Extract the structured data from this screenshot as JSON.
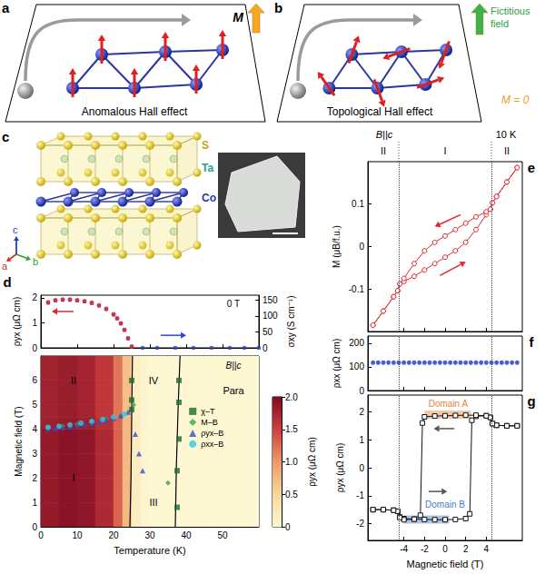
{
  "diagrams": {
    "a": {
      "label": "a",
      "caption": "Anomalous Hall effect",
      "vector_label": "M"
    },
    "b": {
      "label": "b",
      "caption": "Topological Hall effect",
      "vector_label": "Fictitious field",
      "note": "M = 0"
    },
    "c": {
      "label": "c",
      "atoms": [
        {
          "name": "S",
          "color": "#c9a800"
        },
        {
          "name": "Ta",
          "color": "#2a9d8f"
        },
        {
          "name": "Co",
          "color": "#2a3ab0"
        }
      ],
      "axes": [
        {
          "name": "a",
          "color": "#d03020"
        },
        {
          "name": "b",
          "color": "#30a030"
        },
        {
          "name": "c",
          "color": "#2040c0"
        }
      ]
    }
  },
  "chart_data": [
    {
      "panel": "d",
      "type": "scatter",
      "annotation": "0 T",
      "ylabel": "ρyx (μΩ cm)",
      "y2label": "σxy (S cm⁻¹)",
      "xlim": [
        0,
        60
      ],
      "xticks": [
        0,
        10,
        20,
        30,
        40,
        50
      ],
      "ylim": [
        0,
        2.1
      ],
      "yticks": [
        0,
        1,
        2
      ],
      "y2lim": [
        0,
        165
      ],
      "y2ticks": [
        0,
        50,
        100,
        150
      ],
      "tick_labels": "y",
      "series": [
        {
          "color": "#2f49d1",
          "marker": "square",
          "axis": "y2",
          "x": [
            2,
            4,
            6,
            8,
            10,
            12,
            14,
            16,
            18,
            20,
            21,
            22,
            23,
            24,
            25,
            28,
            32,
            37,
            42,
            47,
            52,
            56,
            60
          ],
          "values": [
            141,
            148,
            150,
            150,
            148,
            145,
            140,
            132,
            121,
            104,
            92,
            76,
            56,
            30,
            4,
            0,
            0,
            0,
            0,
            0,
            0,
            0,
            0
          ]
        },
        {
          "color": "#e3262e",
          "marker": "circle",
          "x": [
            2,
            4,
            6,
            8,
            10,
            12,
            14,
            16,
            18,
            20,
            21,
            22,
            23,
            24,
            25
          ],
          "values": [
            1.82,
            1.9,
            1.93,
            1.93,
            1.9,
            1.86,
            1.8,
            1.7,
            1.56,
            1.34,
            1.18,
            0.98,
            0.72,
            0.38,
            0.05
          ]
        }
      ]
    },
    {
      "type": "heatmap",
      "xlabel": "Temperature (K)",
      "ylabel": "Magnetic field (T)",
      "xlim": [
        0,
        60
      ],
      "xticks": [
        0,
        10,
        20,
        30,
        40,
        50
      ],
      "ylim": [
        0,
        7
      ],
      "yticks": [
        0,
        1,
        2,
        3,
        4,
        5,
        6
      ],
      "annotations": [
        "I",
        "II",
        "III",
        "IV",
        "Para",
        "B||c"
      ],
      "x_edges": [
        0,
        5,
        10,
        15,
        20,
        22.5,
        25,
        27.5,
        30,
        35,
        40,
        50,
        60
      ],
      "y_edges": [
        0,
        1,
        2,
        3,
        4,
        4.5,
        5,
        6,
        7
      ],
      "cells": [
        [
          1.85,
          1.92,
          1.88,
          1.7,
          1.3,
          0.75,
          0.15,
          0.03,
          0,
          0,
          0,
          0
        ],
        [
          1.85,
          1.92,
          1.88,
          1.7,
          1.3,
          0.75,
          0.15,
          0.03,
          0,
          0,
          0,
          0
        ],
        [
          1.85,
          1.92,
          1.88,
          1.7,
          1.3,
          0.75,
          0.15,
          0.03,
          0,
          0,
          0,
          0
        ],
        [
          1.85,
          1.92,
          1.88,
          1.7,
          1.3,
          0.75,
          0.15,
          0.03,
          0,
          0,
          0,
          0
        ],
        [
          1.8,
          1.85,
          1.8,
          1.65,
          1.28,
          0.75,
          0.15,
          0.03,
          0,
          0,
          0,
          0
        ],
        [
          1.78,
          1.82,
          1.76,
          1.58,
          1.2,
          0.7,
          0.12,
          0.03,
          0,
          0,
          0,
          0
        ],
        [
          1.78,
          1.82,
          1.76,
          1.58,
          1.2,
          0.7,
          0.12,
          0.03,
          0,
          0,
          0,
          0
        ],
        [
          1.78,
          1.82,
          1.76,
          1.58,
          1.2,
          0.7,
          0.12,
          0.03,
          0,
          0,
          0,
          0
        ]
      ],
      "colorbar": {
        "label": "ρyx (μΩ cm)",
        "range": [
          0,
          2
        ],
        "ticks": [
          0,
          0.5,
          {
            "value": 1,
            "label": "1.0"
          },
          1.5,
          {
            "value": 2,
            "label": "2.0"
          }
        ]
      },
      "boundaries": [
        {
          "x": [
            24.5,
            24.8,
            25,
            25.2
          ],
          "y": [
            0,
            2,
            4.5,
            7
          ]
        },
        {
          "x": [
            37,
            37.3,
            37.8,
            38.3
          ],
          "y": [
            0,
            2.5,
            5,
            7
          ]
        }
      ],
      "legend": "right",
      "series": [
        {
          "name": "χ–T",
          "type": "scatter",
          "color": "#1d6b30",
          "marker": "square",
          "x": [
            25,
            25,
            25,
            37.5,
            37.5,
            38,
            38,
            38
          ],
          "values": [
            4.8,
            5.2,
            6,
            0.8,
            2.3,
            3.6,
            5.1,
            6
          ]
        },
        {
          "name": "M–B",
          "type": "scatter",
          "color": "#3aa845",
          "marker": "diamond",
          "x": [
            2,
            6,
            10,
            14,
            18,
            22,
            25.5,
            35
          ],
          "values": [
            4.05,
            4.12,
            4.2,
            4.32,
            4.42,
            4.55,
            5.0,
            1.8
          ]
        },
        {
          "name": "ρyx–B",
          "type": "scatter",
          "color": "#2a4fd6",
          "marker": "triangle",
          "x": [
            2,
            4,
            6,
            8,
            10,
            12,
            14,
            16,
            18,
            20,
            22,
            24,
            26,
            27,
            28
          ],
          "values": [
            4.0,
            4.03,
            4.07,
            4.1,
            4.15,
            4.2,
            4.25,
            4.3,
            4.38,
            4.45,
            4.55,
            4.7,
            3.8,
            3.0,
            2.3
          ]
        },
        {
          "name": "ρxx–B",
          "type": "scatter",
          "color": "#30c8e0",
          "marker": "circle",
          "x": [
            2,
            5,
            8,
            11,
            14,
            17,
            20,
            23
          ],
          "values": [
            4.08,
            4.12,
            4.18,
            4.25,
            4.32,
            4.4,
            4.5,
            4.62
          ]
        }
      ]
    },
    {
      "panel": "e",
      "type": "line",
      "ylabel": "M (μB/f.u.)",
      "annotations": [
        "B||c",
        "10 K"
      ],
      "regions": [
        "II",
        "I",
        "II"
      ],
      "boundaries": [
        -4.5,
        4.5
      ],
      "xlim": [
        -7.5,
        7.5
      ],
      "xticks": [
        -4,
        -2,
        0,
        2,
        4
      ],
      "ylim": [
        -0.2,
        0.2
      ],
      "yticks": [
        -0.1,
        0,
        0.1
      ],
      "tick_labels": "y",
      "series": [
        {
          "color": "#e3262e",
          "marker": "circle",
          "x": [
            -7,
            -6,
            -5,
            -4.6,
            -4.4,
            -4,
            -3,
            -2,
            -1,
            0,
            1,
            2,
            3,
            4,
            4.4,
            4.6,
            5,
            6,
            7
          ],
          "values": [
            -0.185,
            -0.152,
            -0.118,
            -0.104,
            -0.088,
            -0.082,
            -0.07,
            -0.055,
            -0.04,
            -0.025,
            -0.01,
            0.01,
            0.04,
            0.075,
            0.088,
            0.103,
            0.118,
            0.152,
            0.186
          ]
        },
        {
          "color": "#e3262e",
          "marker": "circle",
          "x": [
            7,
            6,
            5,
            4.6,
            4.4,
            4,
            3,
            2,
            1,
            0,
            -1,
            -2,
            -3,
            -4,
            -4.4,
            -4.6,
            -5,
            -6,
            -7
          ],
          "values": [
            0.186,
            0.152,
            0.118,
            0.103,
            0.088,
            0.082,
            0.07,
            0.055,
            0.04,
            0.025,
            0.01,
            -0.01,
            -0.04,
            -0.075,
            -0.088,
            -0.104,
            -0.118,
            -0.152,
            -0.185
          ]
        }
      ]
    },
    {
      "panel": "f",
      "type": "scatter",
      "ylabel": "ρxx (μΩ cm)",
      "boundaries": [
        -4.5,
        4.5
      ],
      "xlim": [
        -7.5,
        7.5
      ],
      "xticks": [
        -4,
        -2,
        0,
        2,
        4
      ],
      "ylim": [
        0,
        230
      ],
      "yticks": [
        0,
        100,
        200
      ],
      "tick_labels": "y",
      "series": [
        {
          "color": "#2233cc",
          "marker": "circle",
          "x": [
            -7,
            -6.5,
            -6,
            -5.5,
            -5,
            -4.5,
            -4,
            -3.5,
            -3,
            -2.5,
            -2,
            -1.5,
            -1,
            -0.5,
            0,
            0.5,
            1,
            1.5,
            2,
            2.5,
            3,
            3.5,
            4,
            4.5,
            5,
            5.5,
            6,
            6.5,
            7
          ],
          "values": [
            118,
            118,
            118,
            118,
            118,
            118,
            118,
            118,
            118,
            118,
            118,
            118,
            118,
            118,
            118,
            118,
            118,
            118,
            118,
            118,
            118,
            118,
            118,
            118,
            118,
            118,
            118,
            118,
            118
          ]
        }
      ]
    },
    {
      "panel": "g",
      "type": "line",
      "xlabel": "Magnetic field (T)",
      "ylabel": "ρyx (μΩ cm)",
      "boundaries": [
        -4.5,
        4.5
      ],
      "xlim": [
        -7.5,
        7.5
      ],
      "xticks": [
        -4,
        -2,
        0,
        2,
        4
      ],
      "ylim": [
        -2.6,
        2.6
      ],
      "yticks": [
        -2,
        -1,
        0,
        1,
        2
      ],
      "highlights": [
        {
          "label": "Domain A",
          "color": "#e8843e",
          "x": [
            -2,
            2.5
          ],
          "y": 1.9
        },
        {
          "label": "Domain B",
          "color": "#3d7fc8",
          "x": [
            -4,
            0.4
          ],
          "y": -1.85
        }
      ],
      "series": [
        {
          "color": "#111111",
          "marker": "square",
          "x": [
            -7,
            -6,
            -5,
            -4.6,
            -4.4,
            -4,
            -3,
            -2,
            -1,
            0,
            1,
            2,
            2.4,
            2.6,
            3,
            4,
            4.4,
            4.6,
            5,
            6,
            7
          ],
          "values": [
            -1.5,
            -1.5,
            -1.52,
            -1.56,
            -1.76,
            -1.82,
            -1.84,
            -1.85,
            -1.86,
            -1.86,
            -1.85,
            -1.82,
            -1.65,
            1.7,
            1.84,
            1.86,
            1.8,
            1.58,
            1.52,
            1.5,
            1.5
          ]
        },
        {
          "color": "#111111",
          "marker": "square",
          "x": [
            7,
            6,
            5,
            4.6,
            4.4,
            4,
            3,
            2,
            1,
            0,
            -1,
            -2,
            -2.2,
            -2.4,
            -3,
            -4,
            -4.4,
            -4.6,
            -5,
            -6,
            -7
          ],
          "values": [
            1.5,
            1.5,
            1.52,
            1.58,
            1.8,
            1.86,
            1.88,
            1.88,
            1.87,
            1.86,
            1.85,
            1.82,
            1.6,
            -1.7,
            -1.84,
            -1.86,
            -1.78,
            -1.56,
            -1.52,
            -1.5,
            -1.5
          ]
        }
      ]
    }
  ]
}
